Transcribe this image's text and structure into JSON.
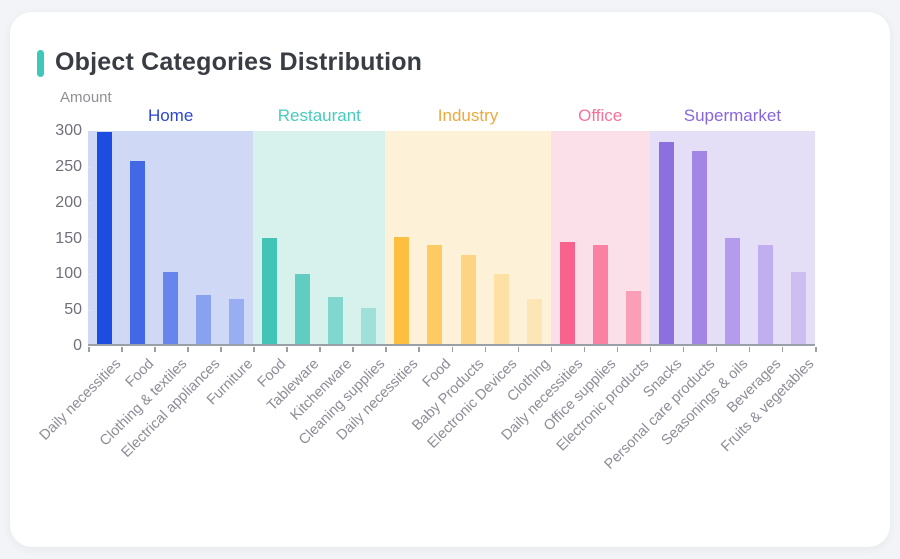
{
  "chart_data": {
    "type": "bar",
    "title": "Object Categories Distribution",
    "ylabel": "Amount",
    "ylim": [
      0,
      300
    ],
    "yticks": [
      0,
      50,
      100,
      150,
      200,
      250,
      300
    ],
    "legend_position": "none",
    "grid": false,
    "axis_color": "#9ba0a8",
    "groups": [
      {
        "name": "Home",
        "label_color": "#2b46ce",
        "band_color": "#cfd9f5",
        "categories": [
          "Daily necessities",
          "Food",
          "Clothing & textiles",
          "Electrical appliances",
          "Furniture"
        ],
        "values": [
          298,
          258,
          102,
          69,
          64
        ],
        "bar_colors": [
          "#1c4ce0",
          "#4268e5",
          "#6785ec",
          "#89a2f0",
          "#98adf2"
        ]
      },
      {
        "name": "Restaurant",
        "label_color": "#47cbbc",
        "band_color": "#d7f1ed",
        "categories": [
          "Food",
          "Tableware",
          "Kitchenware",
          "Cleaning supplies"
        ],
        "values": [
          149,
          98,
          66,
          51
        ],
        "bar_colors": [
          "#44c4b6",
          "#61cdc2",
          "#81d7ce",
          "#9fe1d9"
        ]
      },
      {
        "name": "Industry",
        "label_color": "#eca93f",
        "band_color": "#fdf2d8",
        "categories": [
          "Daily necessities",
          "Food",
          "Baby Products",
          "Electronic Devices",
          "Clothing"
        ],
        "values": [
          151,
          139,
          126,
          99,
          64
        ],
        "bar_colors": [
          "#fcbf40",
          "#fccb62",
          "#fdd481",
          "#fde0a3",
          "#fce6b6"
        ]
      },
      {
        "name": "Office",
        "label_color": "#f7729a",
        "band_color": "#fce0e9",
        "categories": [
          "Daily necessities",
          "Office supplies",
          "Electronic products"
        ],
        "values": [
          143,
          139,
          75
        ],
        "bar_colors": [
          "#f9628d",
          "#fa81a2",
          "#fb9eb7"
        ]
      },
      {
        "name": "Supermarket",
        "label_color": "#8766db",
        "band_color": "#e4def7",
        "categories": [
          "Snacks",
          "Personal care products",
          "Seasonings & oils",
          "Beverages",
          "Fruits & vegetables"
        ],
        "values": [
          285,
          272,
          149,
          140,
          102
        ],
        "bar_colors": [
          "#8c70e0",
          "#a186e6",
          "#b39ceb",
          "#c1aeee",
          "#cebdf1"
        ]
      }
    ]
  },
  "theme": {
    "accent_color": "#3ec8b9",
    "card_background": "#ffffff",
    "page_background": "#f2f4f7"
  }
}
